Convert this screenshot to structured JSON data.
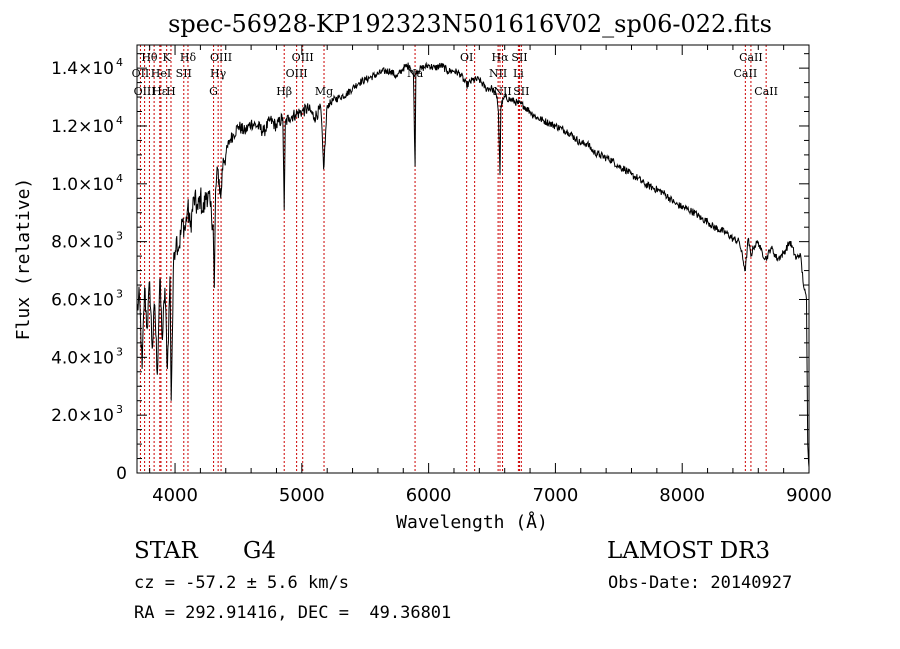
{
  "chart_data": {
    "type": "line",
    "title": "spec-56928-KP192323N501616V02_sp06-022.fits",
    "xlabel": "Wavelength (Å)",
    "ylabel": "Flux (relative)",
    "xlim": [
      3700,
      9000
    ],
    "ylim": [
      0,
      14800
    ],
    "x_ticks": [
      {
        "value": 4000,
        "label": "4000"
      },
      {
        "value": 5000,
        "label": "5000"
      },
      {
        "value": 6000,
        "label": "6000"
      },
      {
        "value": 7000,
        "label": "7000"
      },
      {
        "value": 8000,
        "label": "8000"
      },
      {
        "value": 9000,
        "label": "9000"
      }
    ],
    "y_ticks": [
      {
        "value": 0,
        "mantissa": "0",
        "exp": ""
      },
      {
        "value": 2000,
        "mantissa": "2.0×10",
        "exp": "3"
      },
      {
        "value": 4000,
        "mantissa": "4.0×10",
        "exp": "3"
      },
      {
        "value": 6000,
        "mantissa": "6.0×10",
        "exp": "3"
      },
      {
        "value": 8000,
        "mantissa": "8.0×10",
        "exp": "3"
      },
      {
        "value": 10000,
        "mantissa": "1.0×10",
        "exp": "4"
      },
      {
        "value": 12000,
        "mantissa": "1.2×10",
        "exp": "4"
      },
      {
        "value": 14000,
        "mantissa": "1.4×10",
        "exp": "4"
      }
    ],
    "grid": false,
    "legend": "none",
    "series": [
      {
        "name": "flux",
        "x": [
          3700,
          3720,
          3740,
          3760,
          3780,
          3800,
          3820,
          3840,
          3860,
          3880,
          3900,
          3920,
          3940,
          3960,
          3970,
          3990,
          4010,
          4030,
          4060,
          4080,
          4100,
          4120,
          4150,
          4180,
          4200,
          4220,
          4250,
          4280,
          4300,
          4310,
          4320,
          4340,
          4360,
          4380,
          4400,
          4430,
          4460,
          4500,
          4550,
          4600,
          4650,
          4700,
          4750,
          4800,
          4850,
          4861,
          4870,
          4900,
          4950,
          5000,
          5050,
          5100,
          5150,
          5172,
          5200,
          5250,
          5300,
          5350,
          5400,
          5450,
          5500,
          5550,
          5600,
          5650,
          5700,
          5750,
          5800,
          5850,
          5880,
          5893,
          5900,
          5950,
          6000,
          6050,
          6100,
          6150,
          6200,
          6250,
          6300,
          6350,
          6400,
          6450,
          6500,
          6540,
          6550,
          6563,
          6570,
          6600,
          6650,
          6700,
          6750,
          6800,
          6850,
          6900,
          6950,
          7000,
          7050,
          7100,
          7150,
          7200,
          7250,
          7300,
          7350,
          7400,
          7450,
          7500,
          7550,
          7600,
          7650,
          7700,
          7750,
          7800,
          7850,
          7900,
          7950,
          8000,
          8050,
          8100,
          8150,
          8200,
          8250,
          8300,
          8350,
          8400,
          8450,
          8498,
          8520,
          8542,
          8560,
          8600,
          8620,
          8662,
          8700,
          8750,
          8800,
          8850,
          8900,
          8930,
          8960,
          8980,
          8990,
          9000
        ],
        "values": [
          5600,
          6100,
          3600,
          6400,
          5000,
          6600,
          4300,
          5800,
          3400,
          6700,
          4600,
          6400,
          3600,
          6800,
          2500,
          7600,
          8100,
          7800,
          8700,
          8400,
          9200,
          8500,
          9500,
          9100,
          9600,
          9000,
          9700,
          9200,
          8600,
          6400,
          9800,
          10500,
          9500,
          10900,
          11000,
          11500,
          11700,
          12000,
          11800,
          12100,
          12000,
          11800,
          12200,
          12000,
          12300,
          9100,
          12100,
          12300,
          12400,
          12500,
          12600,
          12300,
          12600,
          10500,
          12700,
          12900,
          13000,
          13100,
          13300,
          13500,
          13600,
          13700,
          13800,
          13900,
          13900,
          13700,
          14000,
          14100,
          13800,
          10600,
          13900,
          14000,
          14100,
          14000,
          14100,
          13900,
          13900,
          13800,
          13400,
          13600,
          13600,
          13300,
          13300,
          13000,
          12500,
          10300,
          12700,
          13000,
          12900,
          12800,
          12700,
          12500,
          12300,
          12200,
          12100,
          12000,
          11900,
          11800,
          11600,
          11400,
          11400,
          11100,
          11000,
          10900,
          10800,
          10600,
          10500,
          10300,
          10200,
          10000,
          9900,
          9800,
          9700,
          9500,
          9300,
          9200,
          9100,
          9000,
          8800,
          8700,
          8500,
          8400,
          8300,
          8100,
          8000,
          7000,
          8100,
          7500,
          7800,
          8000,
          7700,
          7400,
          7800,
          7400,
          7600,
          8000,
          7400,
          7600,
          6400,
          6000,
          1000,
          200
        ]
      }
    ],
    "annotations": [
      {
        "label": "Hθ",
        "x": 3798,
        "row": 1
      },
      {
        "label": "K",
        "x": 3934,
        "row": 1
      },
      {
        "label": "Hδ",
        "x": 4102,
        "row": 1
      },
      {
        "label": "OIII",
        "x": 4363,
        "row": 1
      },
      {
        "label": "OIII",
        "x": 5007,
        "row": 1
      },
      {
        "label": "OI",
        "x": 6300,
        "row": 1
      },
      {
        "label": "Hα",
        "x": 6563,
        "row": 1
      },
      {
        "label": "SII",
        "x": 6717,
        "row": 1
      },
      {
        "label": "CaII",
        "x": 8542,
        "row": 1
      },
      {
        "label": "OII",
        "x": 3727,
        "row": 2
      },
      {
        "label": "HeI",
        "x": 3889,
        "row": 2
      },
      {
        "label": "SII",
        "x": 4069,
        "row": 2
      },
      {
        "label": "Hγ",
        "x": 4340,
        "row": 2
      },
      {
        "label": "OIII",
        "x": 4959,
        "row": 2
      },
      {
        "label": "Na",
        "x": 5893,
        "row": 2
      },
      {
        "label": "NII",
        "x": 6548,
        "row": 2
      },
      {
        "label": "Li",
        "x": 6708,
        "row": 2
      },
      {
        "label": "CaII",
        "x": 8498,
        "row": 2
      },
      {
        "label": "OIII",
        "x": 3760,
        "row": 3
      },
      {
        "label": "Hε",
        "x": 3880,
        "row": 3
      },
      {
        "label": "H",
        "x": 3968,
        "row": 3
      },
      {
        "label": "G",
        "x": 4304,
        "row": 3
      },
      {
        "label": "Hβ",
        "x": 4861,
        "row": 3
      },
      {
        "label": "Mg",
        "x": 5175,
        "row": 3
      },
      {
        "label": "NII",
        "x": 6583,
        "row": 3
      },
      {
        "label": "SII",
        "x": 6731,
        "row": 3
      },
      {
        "label": "CaII",
        "x": 8662,
        "row": 3
      }
    ],
    "line_markers": [
      3727,
      3760,
      3798,
      3835,
      3880,
      3889,
      3934,
      3968,
      4069,
      4102,
      4304,
      4340,
      4363,
      4861,
      4959,
      5007,
      5175,
      5893,
      6300,
      6363,
      6548,
      6563,
      6583,
      6708,
      6717,
      6731,
      8498,
      8542,
      8662
    ]
  },
  "info": {
    "object_class": "STAR",
    "subclass": "G4",
    "survey": "LAMOST DR3",
    "velocity": "cz = -57.2 ± 5.6 km/s",
    "obs_date": "Obs-Date: 20140927",
    "coords": "RA = 292.91416, DEC =  49.36801"
  },
  "colors": {
    "line": "#000000",
    "marker": "#cc0000"
  }
}
